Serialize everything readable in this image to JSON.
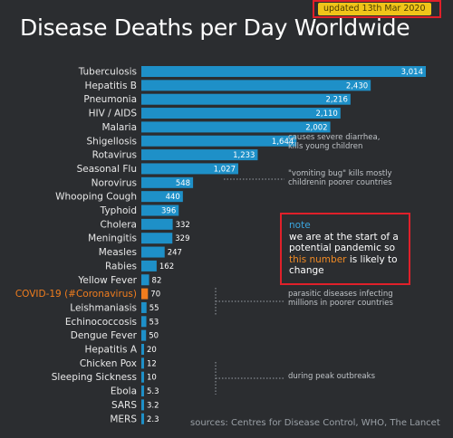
{
  "badge": {
    "text": "updated 13th Mar 2020"
  },
  "title": "Disease Deaths per Day Worldwide",
  "chart_data": {
    "type": "bar",
    "orientation": "horizontal",
    "title": "Disease Deaths per Day Worldwide",
    "categories": [
      "Tuberculosis",
      "Hepatitis B",
      "Pneumonia",
      "HIV / AIDS",
      "Malaria",
      "Shigellosis",
      "Rotavirus",
      "Seasonal Flu",
      "Norovirus",
      "Whooping Cough",
      "Typhoid",
      "Cholera",
      "Meningitis",
      "Measles",
      "Rabies",
      "Yellow Fever",
      "COVID-19 (#Coronavirus)",
      "Leishmaniasis",
      "Echinococcosis",
      "Dengue Fever",
      "Hepatitis A",
      "Chicken Pox",
      "Sleeping Sickness",
      "Ebola",
      "SARS",
      "MERS"
    ],
    "values": [
      3014,
      2430,
      2216,
      2110,
      2002,
      1644,
      1233,
      1027,
      548,
      440,
      396,
      332,
      329,
      247,
      162,
      82,
      70,
      55,
      53,
      50,
      20,
      12,
      10,
      5.3,
      3.2,
      2.3
    ],
    "value_labels": [
      "3,014",
      "2,430",
      "2,216",
      "2,110",
      "2,002",
      "1,644",
      "1,233",
      "1,027",
      "548",
      "440",
      "396",
      "332",
      "329",
      "247",
      "162",
      "82",
      "70",
      "55",
      "53",
      "50",
      "20",
      "12",
      "10",
      "5.3",
      "3.2",
      "2.3"
    ],
    "highlight": "COVID-19 (#Coronavirus)",
    "colors": {
      "bar": "#1e90c8",
      "highlight": "#f07d1e",
      "label": "#e8e8e8"
    },
    "xlim": [
      0,
      3014
    ]
  },
  "annotations": {
    "shigellosis": [
      "causes severe diarrhea,",
      "kills young children"
    ],
    "norovirus": [
      "\"vomiting bug\" kills mostly",
      "childrenin poorer countries"
    ],
    "parasitic": [
      "parasitic diseases infecting",
      "millions in poorer countries"
    ],
    "outbreaks": [
      "during peak outbreaks"
    ]
  },
  "note": {
    "heading": "note",
    "text_before": "we are at the start of a potential pandemic so ",
    "highlight": "this number",
    "text_after": " is likely to change"
  },
  "sources": "sources: Centres for Disease Control, WHO, The Lancet"
}
